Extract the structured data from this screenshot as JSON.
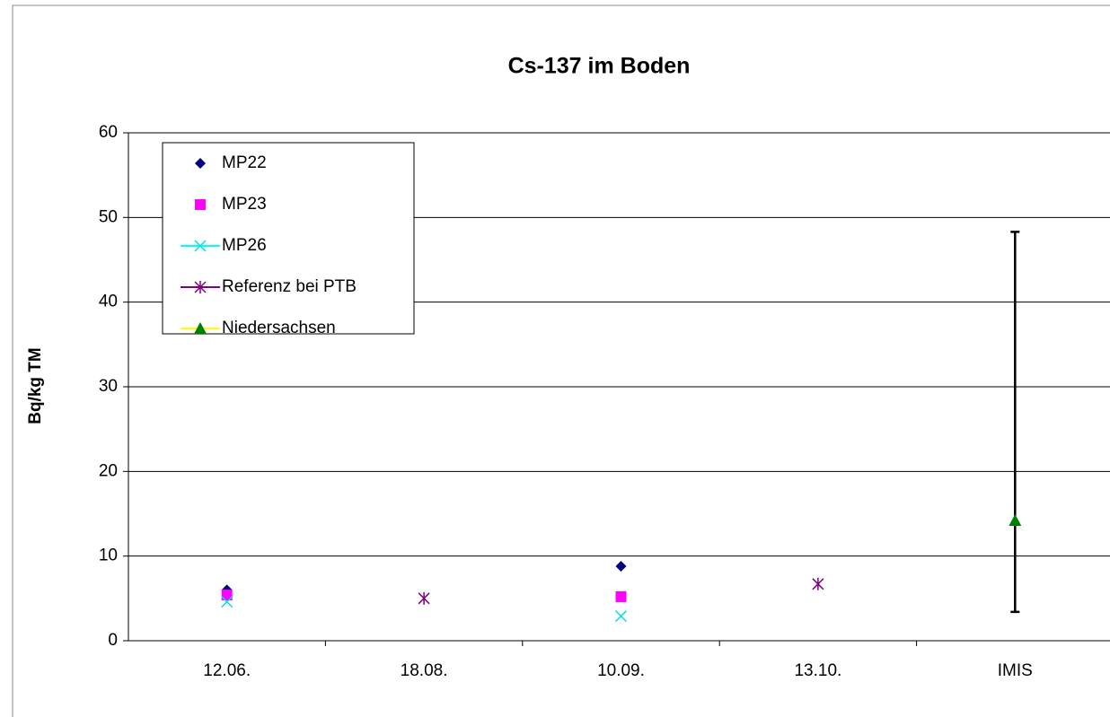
{
  "chart_data": {
    "type": "scatter",
    "title": "Cs-137 im Boden",
    "ylabel": "Bq/kg TM",
    "categories": [
      "12.06.",
      "18.08.",
      "10.09.",
      "13.10.",
      "IMIS"
    ],
    "ylim": [
      0,
      60
    ],
    "yticks": [
      0,
      10,
      20,
      30,
      40,
      50,
      60
    ],
    "grid": true,
    "legend": "upper left",
    "series": [
      {
        "name": "MP22",
        "color": "#000080",
        "marker": "diamond",
        "values": [
          6.0,
          null,
          8.8,
          null,
          null
        ]
      },
      {
        "name": "MP23",
        "color": "#ff00ff",
        "marker": "square",
        "values": [
          5.4,
          null,
          5.2,
          null,
          null
        ]
      },
      {
        "name": "MP26",
        "color": "#00e0e0",
        "marker": "x",
        "line_color": "#00ffff",
        "values": [
          4.6,
          null,
          2.9,
          null,
          null
        ]
      },
      {
        "name": "Referenz bei PTB",
        "color": "#800080",
        "marker": "star",
        "line_color": "#800080",
        "values": [
          null,
          5.0,
          null,
          6.7,
          null
        ]
      },
      {
        "name": "Niedersachsen",
        "color": "#008000",
        "marker": "triangle",
        "line_color": "#ffff00",
        "values": [
          null,
          null,
          null,
          null,
          14.2
        ],
        "error_low": [
          null,
          null,
          null,
          null,
          3.4
        ],
        "error_high": [
          null,
          null,
          null,
          null,
          48.3
        ]
      }
    ]
  }
}
